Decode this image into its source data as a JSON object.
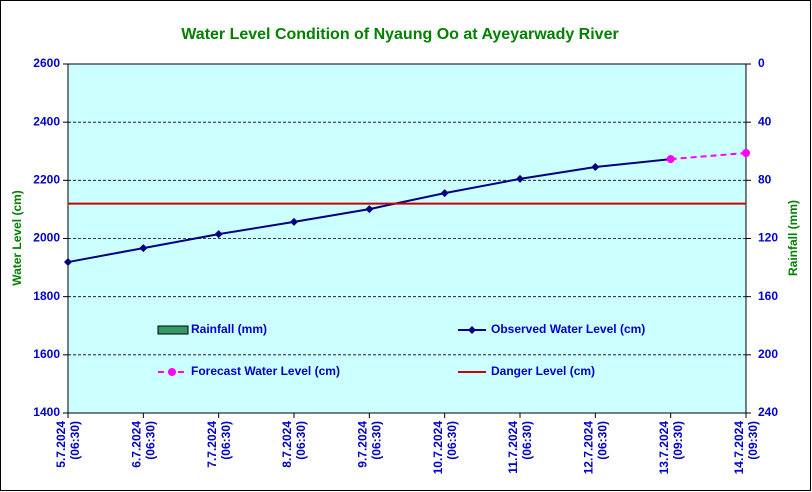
{
  "chart_data": {
    "type": "line",
    "title": "Water Level Condition of Nyaung Oo at Ayeyarwady River",
    "y_label": "Water Level (cm)",
    "y2_label": "Rainfall (mm)",
    "categories": [
      [
        "5.7.2024",
        "(06:30)"
      ],
      [
        "6.7.2024",
        "(06:30)"
      ],
      [
        "7.7.2024",
        "(06:30)"
      ],
      [
        "8.7.2024",
        "(06:30)"
      ],
      [
        "9.7.2024",
        "(06:30)"
      ],
      [
        "10.7.2024",
        "(06:30)"
      ],
      [
        "11.7.2024",
        "(06:30)"
      ],
      [
        "12.7.2024",
        "(06:30)"
      ],
      [
        "13.7.2024",
        "(09:30)"
      ],
      [
        "14.7.2024",
        "(09:30)"
      ]
    ],
    "series": [
      {
        "name": "Rainfall (mm)",
        "color": "#339966",
        "kind": "bar",
        "axis": "y2",
        "values": [
          null,
          null,
          null,
          null,
          null,
          null,
          null,
          null,
          null,
          null
        ]
      },
      {
        "name": "Observed Water Level (cm)",
        "color": "#000080",
        "kind": "line",
        "values": [
          1919,
          1967,
          2015,
          2057,
          2101,
          2156,
          2205,
          2246,
          2273,
          null
        ]
      },
      {
        "name": "Forecast Water Level (cm)",
        "color": "#ff00ff",
        "kind": "dashed",
        "values": [
          null,
          null,
          null,
          null,
          null,
          null,
          null,
          null,
          2273,
          2294
        ]
      },
      {
        "name": "Danger Level (cm)",
        "color": "#cc0000",
        "kind": "level",
        "values": [
          2120,
          2120,
          2120,
          2120,
          2120,
          2120,
          2120,
          2120,
          2120,
          2120
        ]
      }
    ],
    "ylim": [
      1400,
      2600
    ],
    "yticks": [
      1400,
      1600,
      1800,
      2000,
      2200,
      2400,
      2600
    ],
    "y2lim": [
      240,
      0
    ],
    "y2ticks": [
      0,
      40,
      80,
      120,
      160,
      200,
      240
    ],
    "grid": true
  }
}
